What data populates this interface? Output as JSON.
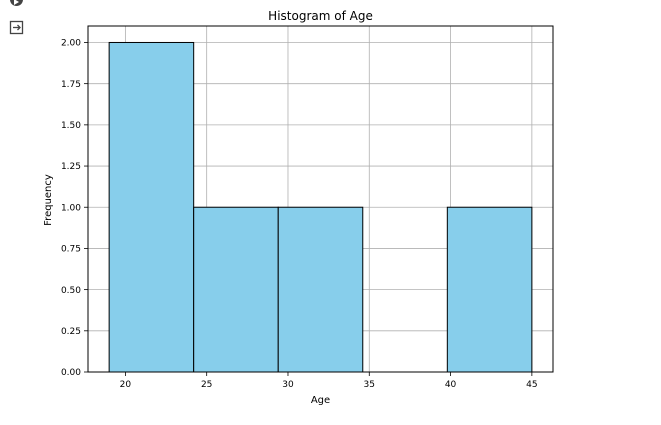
{
  "chart_data": {
    "type": "bar",
    "title": "Histogram of Age",
    "xlabel": "Age",
    "ylabel": "Frequency",
    "bins": [
      {
        "start": 19.0,
        "end": 24.2,
        "count": 2
      },
      {
        "start": 24.2,
        "end": 29.4,
        "count": 1
      },
      {
        "start": 29.4,
        "end": 34.6,
        "count": 1
      },
      {
        "start": 34.6,
        "end": 39.8,
        "count": 0
      },
      {
        "start": 39.8,
        "end": 45.0,
        "count": 1
      }
    ],
    "xlim": [
      17.7,
      46.3
    ],
    "ylim": [
      0,
      2.1
    ],
    "xticks": [
      20,
      25,
      30,
      35,
      40,
      45
    ],
    "xtick_labels": [
      "20",
      "25",
      "30",
      "35",
      "40",
      "45"
    ],
    "yticks": [
      0,
      0.25,
      0.5,
      0.75,
      1.0,
      1.25,
      1.5,
      1.75,
      2.0
    ],
    "ytick_labels": [
      "0.00",
      "0.25",
      "0.50",
      "0.75",
      "1.00",
      "1.25",
      "1.50",
      "1.75",
      "2.00"
    ],
    "grid": true,
    "colors": {
      "bar_fill": "#87ceeb",
      "bar_edge": "#000000",
      "grid": "#b0b0b0"
    }
  },
  "toolbar": {
    "run_icon": "run-icon",
    "output_icon": "output-icon"
  }
}
